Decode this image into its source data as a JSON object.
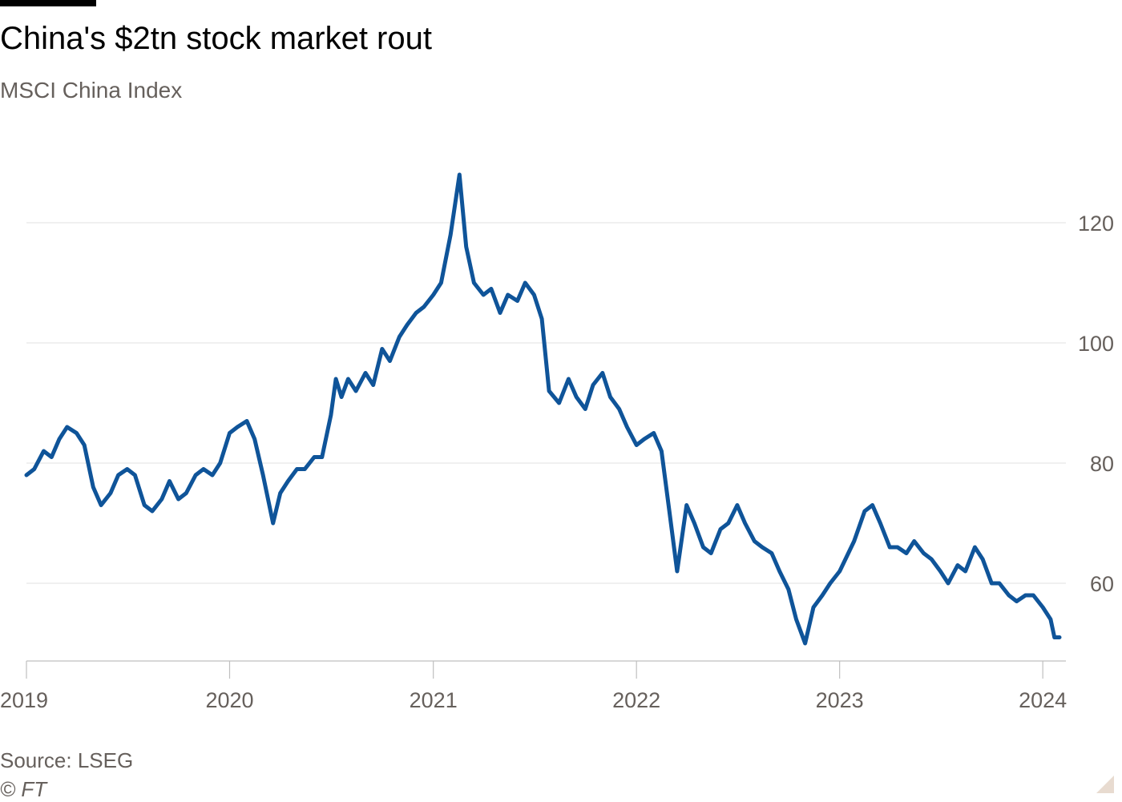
{
  "header": {
    "title": "China's $2tn stock market rout",
    "subtitle": "MSCI China Index"
  },
  "footer": {
    "source": "Source: LSEG",
    "credit": "© FT"
  },
  "colors": {
    "line": "#0f5499",
    "grid": "#e6e6e6",
    "axis": "#66605c",
    "tick_text": "#66605c"
  },
  "chart_data": {
    "type": "line",
    "title": "China's $2tn stock market rout",
    "subtitle": "MSCI China Index",
    "xlabel": "",
    "ylabel": "",
    "x_ticks": [
      "2019",
      "2020",
      "2021",
      "2022",
      "2023",
      "2024"
    ],
    "y_ticks": [
      60,
      80,
      100,
      120
    ],
    "ylim": [
      47,
      133
    ],
    "xlim": [
      "2019-01-01",
      "2024-01-31"
    ],
    "y_axis_position": "right",
    "grid": "horizontal",
    "series": [
      {
        "name": "",
        "color": "#0f5499",
        "x": [
          "2019-01-01",
          "2019-01-15",
          "2019-02-01",
          "2019-02-15",
          "2019-03-01",
          "2019-03-15",
          "2019-04-01",
          "2019-04-15",
          "2019-05-01",
          "2019-05-15",
          "2019-06-01",
          "2019-06-15",
          "2019-07-01",
          "2019-07-15",
          "2019-08-01",
          "2019-08-15",
          "2019-09-01",
          "2019-09-15",
          "2019-10-01",
          "2019-10-15",
          "2019-11-01",
          "2019-11-15",
          "2019-12-01",
          "2019-12-15",
          "2020-01-01",
          "2020-01-15",
          "2020-02-01",
          "2020-02-15",
          "2020-03-01",
          "2020-03-19",
          "2020-04-01",
          "2020-04-15",
          "2020-05-01",
          "2020-05-15",
          "2020-06-01",
          "2020-06-15",
          "2020-07-01",
          "2020-07-10",
          "2020-07-20",
          "2020-08-01",
          "2020-08-15",
          "2020-09-01",
          "2020-09-15",
          "2020-10-01",
          "2020-10-15",
          "2020-11-01",
          "2020-11-15",
          "2020-12-01",
          "2020-12-15",
          "2021-01-01",
          "2021-01-15",
          "2021-02-01",
          "2021-02-17",
          "2021-03-01",
          "2021-03-15",
          "2021-04-01",
          "2021-04-15",
          "2021-05-01",
          "2021-05-15",
          "2021-06-01",
          "2021-06-15",
          "2021-07-01",
          "2021-07-15",
          "2021-07-28",
          "2021-08-15",
          "2021-09-01",
          "2021-09-15",
          "2021-10-01",
          "2021-10-15",
          "2021-11-01",
          "2021-11-15",
          "2021-12-01",
          "2021-12-15",
          "2022-01-01",
          "2022-01-15",
          "2022-02-01",
          "2022-02-15",
          "2022-03-01",
          "2022-03-15",
          "2022-04-01",
          "2022-04-15",
          "2022-05-01",
          "2022-05-15",
          "2022-06-01",
          "2022-06-15",
          "2022-07-01",
          "2022-07-15",
          "2022-08-01",
          "2022-08-15",
          "2022-09-01",
          "2022-09-15",
          "2022-10-01",
          "2022-10-15",
          "2022-10-31",
          "2022-11-15",
          "2022-12-01",
          "2022-12-15",
          "2023-01-01",
          "2023-01-27",
          "2023-02-15",
          "2023-03-01",
          "2023-03-15",
          "2023-04-01",
          "2023-04-15",
          "2023-05-01",
          "2023-05-15",
          "2023-06-01",
          "2023-06-15",
          "2023-07-01",
          "2023-07-15",
          "2023-08-01",
          "2023-08-15",
          "2023-09-01",
          "2023-09-15",
          "2023-10-01",
          "2023-10-15",
          "2023-11-01",
          "2023-11-15",
          "2023-12-01",
          "2023-12-15",
          "2024-01-01",
          "2024-01-15",
          "2024-01-22",
          "2024-01-31"
        ],
        "y": [
          78,
          79,
          82,
          81,
          84,
          86,
          85,
          83,
          76,
          73,
          75,
          78,
          79,
          78,
          73,
          72,
          74,
          77,
          74,
          75,
          78,
          79,
          78,
          80,
          85,
          86,
          87,
          84,
          78,
          70,
          75,
          77,
          79,
          79,
          81,
          81,
          88,
          94,
          91,
          94,
          92,
          95,
          93,
          99,
          97,
          101,
          103,
          105,
          106,
          108,
          110,
          118,
          128,
          116,
          110,
          108,
          109,
          105,
          108,
          107,
          110,
          108,
          104,
          92,
          90,
          94,
          91,
          89,
          93,
          95,
          91,
          89,
          86,
          83,
          84,
          85,
          82,
          72,
          62,
          73,
          70,
          66,
          65,
          69,
          70,
          73,
          70,
          67,
          66,
          65,
          62,
          59,
          54,
          50,
          56,
          58,
          60,
          62,
          67,
          72,
          73,
          70,
          66,
          66,
          65,
          67,
          65,
          64,
          62,
          60,
          63,
          62,
          66,
          64,
          60,
          60,
          58,
          57,
          58,
          58,
          56,
          54,
          51,
          51
        ]
      }
    ]
  }
}
